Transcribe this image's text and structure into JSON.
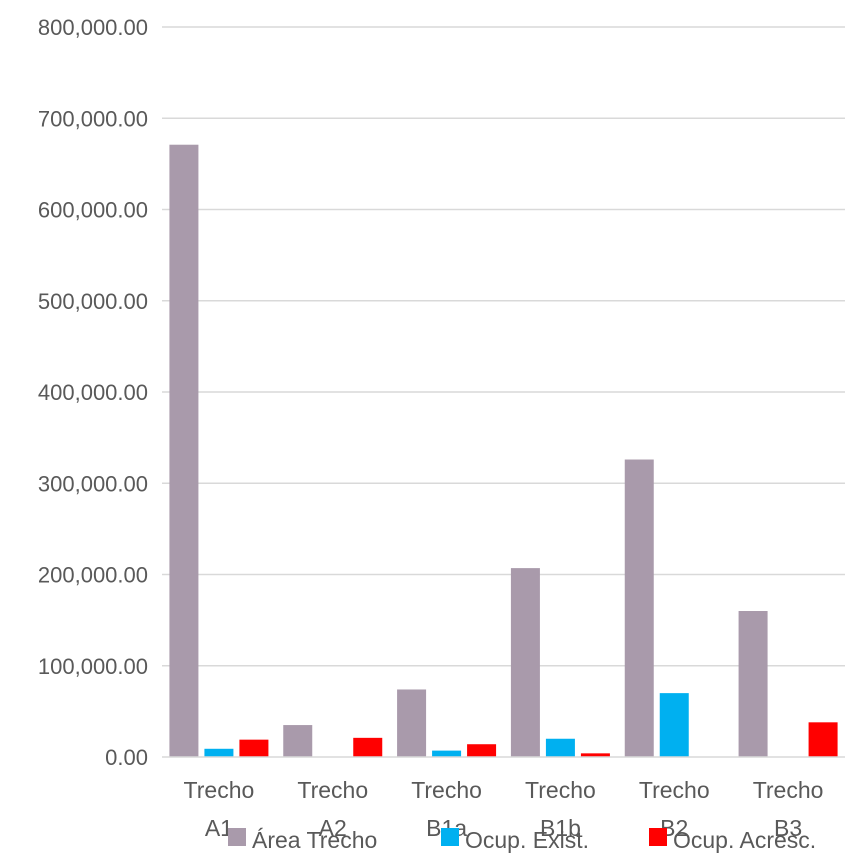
{
  "chart_data": {
    "type": "bar",
    "title": "",
    "xlabel": "",
    "ylabel": "",
    "ylim": [
      0,
      800000
    ],
    "yticks": [
      "0.00",
      "100,000.00",
      "200,000.00",
      "300,000.00",
      "400,000.00",
      "500,000.00",
      "600,000.00",
      "700,000.00",
      "800,000.00"
    ],
    "ytick_values": [
      0,
      100000,
      200000,
      300000,
      400000,
      500000,
      600000,
      700000,
      800000
    ],
    "grid": true,
    "legend_position": "bottom",
    "categories": [
      [
        "Trecho",
        "A1"
      ],
      [
        "Trecho",
        "A2"
      ],
      [
        "Trecho",
        "B1a"
      ],
      [
        "Trecho",
        "B1b"
      ],
      [
        "Trecho",
        "B2"
      ],
      [
        "Trecho",
        "B3"
      ]
    ],
    "series": [
      {
        "name": "Área Trecho",
        "color": "#a99aab",
        "values": [
          671000,
          35000,
          74000,
          207000,
          326000,
          160000
        ]
      },
      {
        "name": "Ocup. Exist.",
        "color": "#00b0f0",
        "values": [
          9000,
          0,
          7000,
          20000,
          70000,
          0
        ]
      },
      {
        "name": "Ocup. Acresc.",
        "color": "#ff0000",
        "values": [
          19000,
          21000,
          14000,
          4000,
          0,
          38000
        ]
      }
    ]
  }
}
